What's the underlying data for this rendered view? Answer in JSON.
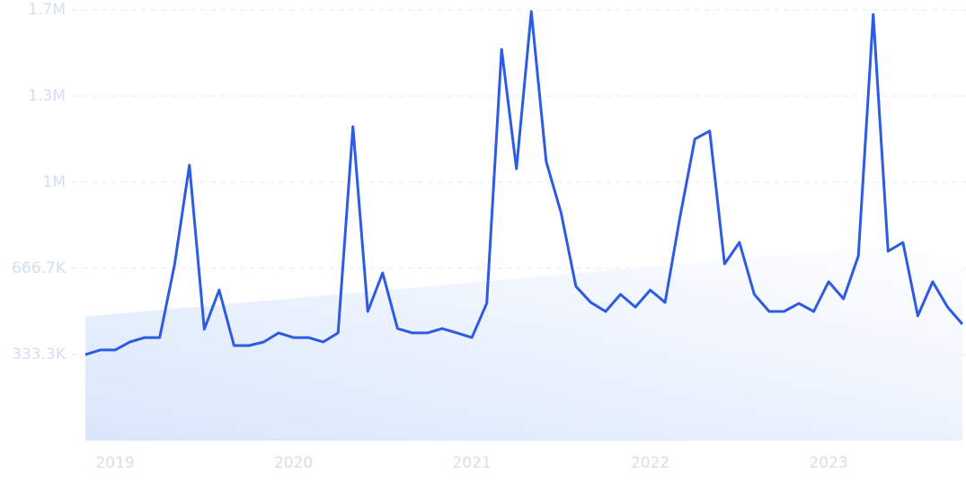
{
  "chart_data": {
    "type": "line",
    "categories": [
      null,
      null,
      "2019",
      null,
      null,
      null,
      null,
      null,
      null,
      null,
      null,
      null,
      null,
      null,
      "2020",
      null,
      null,
      null,
      null,
      null,
      null,
      null,
      null,
      null,
      null,
      null,
      "2021",
      null,
      null,
      null,
      null,
      null,
      null,
      null,
      null,
      null,
      null,
      null,
      "2022",
      null,
      null,
      null,
      null,
      null,
      null,
      null,
      null,
      null,
      null,
      null,
      "2023",
      null,
      null,
      null,
      null,
      null,
      null,
      null,
      null,
      null
    ],
    "series": [
      {
        "color": "#2d5be3",
        "values": [
          333000,
          351000,
          351000,
          382000,
          399000,
          399000,
          681000,
          1066000,
          431000,
          583000,
          368000,
          368000,
          382000,
          417000,
          399000,
          399000,
          382000,
          417000,
          1215000,
          500000,
          649000,
          434000,
          417000,
          417000,
          434000,
          417000,
          399000,
          531000,
          1514000,
          1052000,
          1660000,
          1080000,
          882000,
          597000,
          535000,
          500000,
          566000,
          517000,
          583000,
          535000,
          865000,
          1167000,
          1198000,
          684000,
          767000,
          566000,
          500000,
          500000,
          531000,
          500000,
          615000,
          549000,
          715000,
          1649000,
          733000,
          767000,
          483000,
          615000,
          517000,
          451000
        ]
      }
    ],
    "trend": {
      "values": [
        480000,
        780000
      ]
    },
    "ylim": [
      0,
      1666667
    ],
    "yticks": [
      {
        "value": 333333,
        "label": "333.3K"
      },
      {
        "value": 666667,
        "label": "666.7K"
      },
      {
        "value": 1000000,
        "label": "1M"
      },
      {
        "value": 1333333,
        "label": "1.3M"
      },
      {
        "value": 1666667,
        "label": "1.7M"
      }
    ],
    "grid": true
  }
}
